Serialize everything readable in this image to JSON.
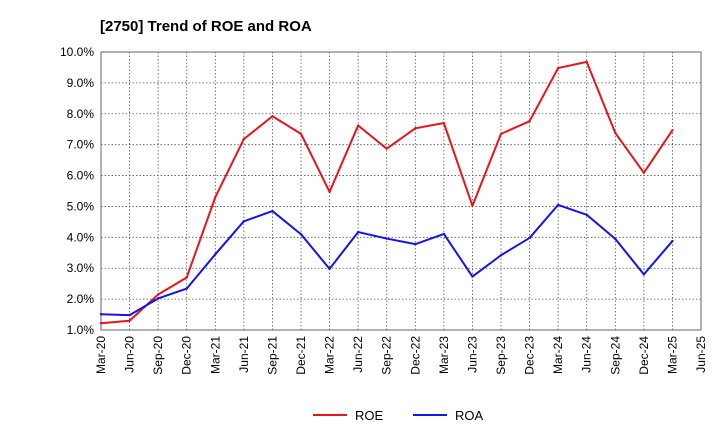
{
  "chart_data": {
    "type": "line",
    "title": "[2750]  Trend of ROE and ROA",
    "xlabel": "",
    "ylabel": "",
    "x": [
      "Mar-20",
      "Jun-20",
      "Sep-20",
      "Dec-20",
      "Mar-21",
      "Jun-21",
      "Sep-21",
      "Dec-21",
      "Mar-22",
      "Jun-22",
      "Sep-22",
      "Dec-22",
      "Mar-23",
      "Jun-23",
      "Sep-23",
      "Dec-23",
      "Mar-24",
      "Jun-24",
      "Sep-24",
      "Dec-24",
      "Mar-25",
      "Jun-25"
    ],
    "ylim": [
      1.0,
      10.0
    ],
    "yticks": [
      1.0,
      2.0,
      3.0,
      4.0,
      5.0,
      6.0,
      7.0,
      8.0,
      9.0,
      10.0
    ],
    "ytick_labels": [
      "1.0%",
      "2.0%",
      "3.0%",
      "4.0%",
      "5.0%",
      "6.0%",
      "7.0%",
      "8.0%",
      "9.0%",
      "10.0%"
    ],
    "grid": true,
    "legend_position": "bottom-center",
    "series": [
      {
        "name": "ROE",
        "color": "#e8141b",
        "values": [
          1.22,
          1.3,
          2.15,
          2.7,
          5.3,
          7.18,
          7.92,
          7.35,
          5.47,
          7.62,
          6.87,
          7.53,
          7.7,
          5.02,
          7.35,
          7.76,
          9.48,
          9.68,
          7.38,
          6.09,
          7.47,
          null
        ]
      },
      {
        "name": "ROA",
        "color": "#1414e6",
        "values": [
          1.51,
          1.48,
          2.02,
          2.34,
          3.45,
          4.52,
          4.85,
          4.1,
          2.98,
          4.17,
          3.96,
          3.78,
          4.11,
          2.73,
          3.42,
          3.98,
          5.05,
          4.73,
          3.95,
          2.8,
          3.88,
          null
        ]
      }
    ]
  }
}
